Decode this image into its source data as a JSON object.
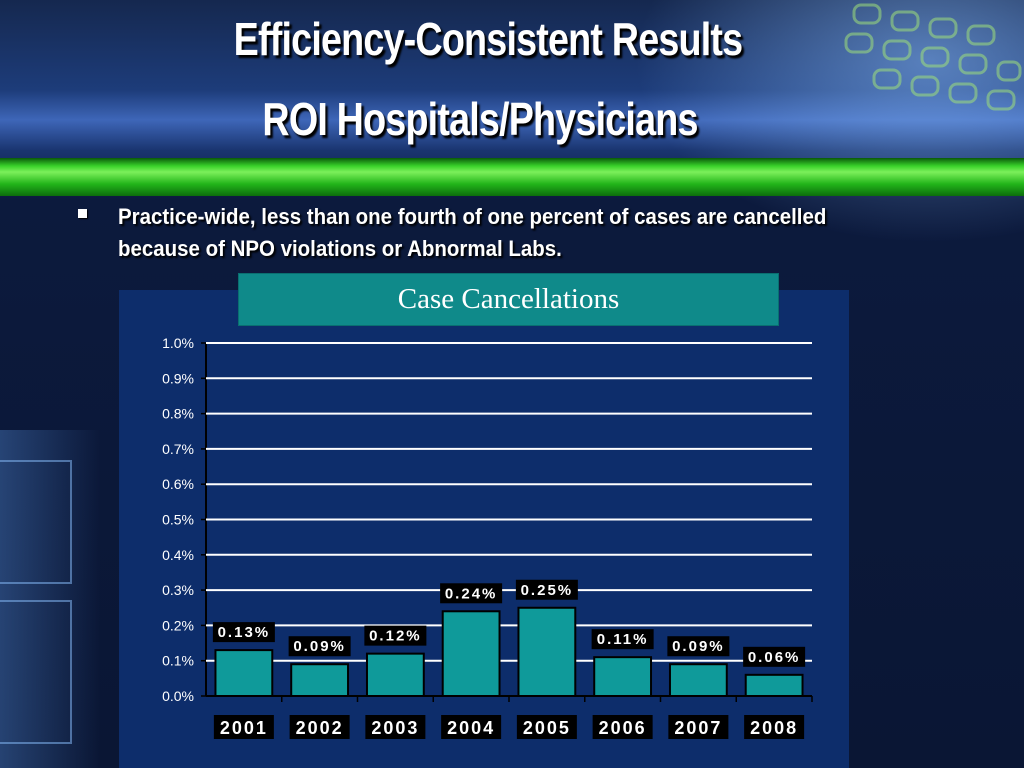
{
  "slide": {
    "title_line1": "Efficiency-Consistent Results",
    "title_line2": "ROI Hospitals/Physicians",
    "bullet_text": "Practice-wide, less than one fourth of one percent of cases are cancelled because of NPO violations or Abnormal Labs."
  },
  "colors": {
    "bar_fill": "#0f9a9a",
    "panel": "#0d2d6b",
    "accent_green": "#39d12a"
  },
  "chart_data": {
    "type": "bar",
    "title": "Case Cancellations",
    "xlabel": "",
    "ylabel": "",
    "categories": [
      "2001",
      "2002",
      "2003",
      "2004",
      "2005",
      "2006",
      "2007",
      "2008"
    ],
    "values": [
      0.13,
      0.09,
      0.12,
      0.24,
      0.25,
      0.11,
      0.09,
      0.06
    ],
    "data_labels": [
      "0.13%",
      "0.09%",
      "0.12%",
      "0.24%",
      "0.25%",
      "0.11%",
      "0.09%",
      "0.06%"
    ],
    "y_ticks": [
      "0.0%",
      "0.1%",
      "0.2%",
      "0.3%",
      "0.4%",
      "0.5%",
      "0.6%",
      "0.7%",
      "0.8%",
      "0.9%",
      "1.0%"
    ],
    "ylim": [
      0,
      1.0
    ],
    "grid": true,
    "legend": "none"
  }
}
